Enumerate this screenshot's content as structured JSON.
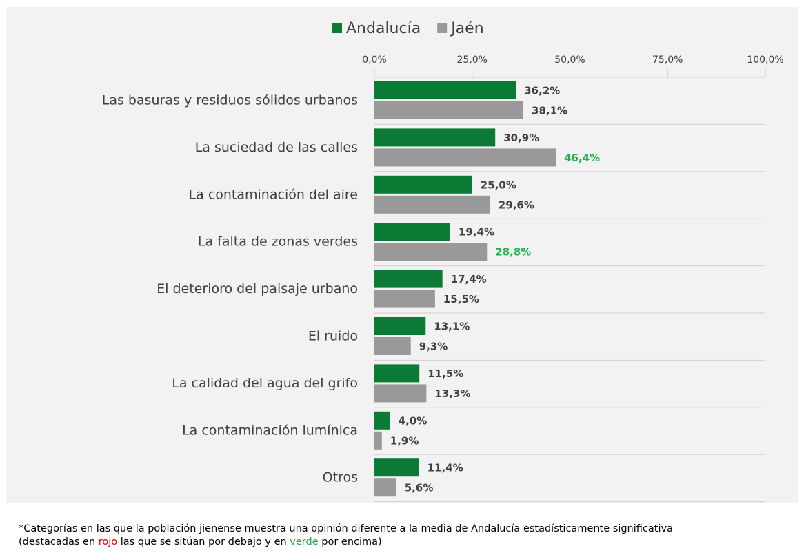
{
  "chart_data": {
    "type": "hbar",
    "categories": [
      "Las basuras y residuos sólidos urbanos",
      "La suciedad de las calles",
      "La contaminación del aire",
      "La falta de zonas verdes",
      "El deterioro del paisaje urbano",
      "El ruido",
      "La calidad del agua del grifo",
      "La contaminación lumínica",
      "Otros"
    ],
    "series": [
      {
        "name": "Andalucía",
        "color": "#0b7a34",
        "values": [
          36.2,
          30.9,
          25.0,
          19.4,
          17.4,
          13.1,
          11.5,
          4.0,
          11.4
        ],
        "value_labels": [
          "36,2%",
          "30,9%",
          "25,0%",
          "19,4%",
          "17,4%",
          "13,1%",
          "11,5%",
          "4,0%",
          "11,4%"
        ],
        "label_colors": [
          null,
          null,
          null,
          null,
          null,
          null,
          null,
          null,
          null
        ]
      },
      {
        "name": "Jaén",
        "color": "#999999",
        "values": [
          38.1,
          46.4,
          29.6,
          28.8,
          15.5,
          9.3,
          13.3,
          1.9,
          5.6
        ],
        "value_labels": [
          "38,1%",
          "46,4%",
          "29,6%",
          "28,8%",
          "15,5%",
          "9,3%",
          "13,3%",
          "1,9%",
          "5,6%"
        ],
        "label_colors": [
          null,
          "#1fae4b",
          null,
          "#1fae4b",
          null,
          null,
          null,
          null,
          null
        ]
      }
    ],
    "xlim": [
      0,
      100
    ],
    "xticks": [
      {
        "value": 0,
        "label": "0,0%"
      },
      {
        "value": 25,
        "label": "25,0%"
      },
      {
        "value": 50,
        "label": "50,0%"
      },
      {
        "value": 75,
        "label": "75,0%"
      },
      {
        "value": 100,
        "label": "100,0%"
      }
    ],
    "legend": "top",
    "footnote": {
      "line1": "*Categorías en las que la población jienense muestra una opinión diferente a la media de Andalucía estadísticamente significativa",
      "line2": [
        {
          "text": "(destacadas en "
        },
        {
          "text": "rojo",
          "color": "#e00000"
        },
        {
          "text": " las que se sitúan por debajo y en "
        },
        {
          "text": "verde",
          "color": "#1fae4b"
        },
        {
          "text": " por encima)"
        }
      ]
    }
  }
}
